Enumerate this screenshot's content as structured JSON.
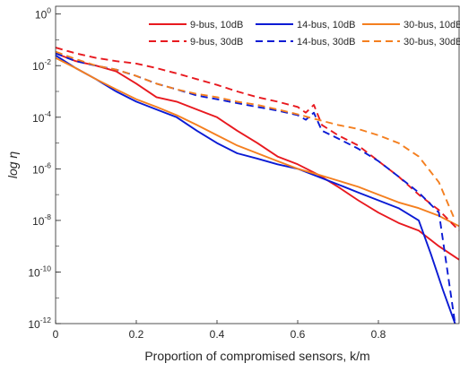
{
  "chart_data": {
    "type": "line",
    "xlabel": "Proportion of compromised sensors, k/m",
    "ylabel": "log η",
    "xlim": [
      0,
      1
    ],
    "ylim": [
      1e-12,
      2
    ],
    "yscale": "log",
    "grid": false,
    "legend_position": "top-right",
    "x_ticks": [
      0,
      0.2,
      0.4,
      0.6,
      0.8
    ],
    "x_tick_labels": [
      "0",
      "0.2",
      "0.4",
      "0.6",
      "0.8"
    ],
    "y_ticks": [
      1e-12,
      1e-10,
      1e-08,
      1e-06,
      0.0001,
      0.01,
      1
    ],
    "y_tick_labels": [
      {
        "base": "10",
        "exp": "-12"
      },
      {
        "base": "10",
        "exp": "-10"
      },
      {
        "base": "10",
        "exp": "-8"
      },
      {
        "base": "10",
        "exp": "-6"
      },
      {
        "base": "10",
        "exp": "-4"
      },
      {
        "base": "10",
        "exp": "-2"
      },
      {
        "base": "10",
        "exp": "0"
      }
    ],
    "series": [
      {
        "name": "9-bus, 10dB",
        "color": "#e8191f",
        "dash": "solid",
        "x": [
          0,
          0.05,
          0.1,
          0.15,
          0.2,
          0.25,
          0.3,
          0.35,
          0.4,
          0.45,
          0.5,
          0.55,
          0.6,
          0.65,
          0.7,
          0.75,
          0.8,
          0.85,
          0.9,
          0.95,
          1.0
        ],
        "y": [
          0.03,
          0.015,
          0.01,
          0.006,
          0.002,
          0.0006,
          0.0004,
          0.0002,
          0.0001,
          3e-05,
          1e-05,
          3e-06,
          1.5e-06,
          6e-07,
          2e-07,
          6e-08,
          2e-08,
          8e-09,
          4e-09,
          1e-09,
          3e-10
        ]
      },
      {
        "name": "14-bus, 10dB",
        "color": "#0b1bd4",
        "dash": "solid",
        "x": [
          0,
          0.05,
          0.1,
          0.15,
          0.2,
          0.25,
          0.3,
          0.35,
          0.4,
          0.45,
          0.5,
          0.55,
          0.6,
          0.65,
          0.7,
          0.75,
          0.8,
          0.85,
          0.9,
          0.93,
          0.96,
          0.99
        ],
        "y": [
          0.025,
          0.008,
          0.003,
          0.001,
          0.0004,
          0.0002,
          0.0001,
          3e-05,
          1e-05,
          4e-06,
          2.5e-06,
          1.5e-06,
          1e-06,
          5e-07,
          2.5e-07,
          1.2e-07,
          6e-08,
          3e-08,
          1e-08,
          5e-10,
          2e-11,
          1e-12
        ]
      },
      {
        "name": "30-bus, 10dB",
        "color": "#f47f1f",
        "dash": "solid",
        "x": [
          0,
          0.05,
          0.1,
          0.15,
          0.2,
          0.25,
          0.3,
          0.35,
          0.4,
          0.45,
          0.5,
          0.55,
          0.6,
          0.65,
          0.7,
          0.75,
          0.8,
          0.85,
          0.9,
          0.95,
          1.0
        ],
        "y": [
          0.02,
          0.008,
          0.003,
          0.0012,
          0.0005,
          0.00025,
          0.00012,
          5e-05,
          2e-05,
          8e-06,
          4e-06,
          2e-06,
          1e-06,
          6e-07,
          3.5e-07,
          2e-07,
          1e-07,
          5e-08,
          3e-08,
          1.5e-08,
          6e-09
        ]
      },
      {
        "name": "9-bus, 30dB",
        "color": "#e8191f",
        "dash": "dashed",
        "x": [
          0,
          0.05,
          0.1,
          0.15,
          0.2,
          0.25,
          0.3,
          0.35,
          0.4,
          0.45,
          0.5,
          0.55,
          0.6,
          0.62,
          0.64,
          0.66,
          0.7,
          0.75,
          0.8,
          0.85,
          0.9,
          0.95,
          1.0
        ],
        "y": [
          0.05,
          0.03,
          0.02,
          0.015,
          0.012,
          0.008,
          0.005,
          0.003,
          0.0018,
          0.001,
          0.0006,
          0.0004,
          0.00025,
          0.00015,
          0.0003,
          5e-05,
          2e-05,
          8e-06,
          2e-06,
          5e-07,
          1e-07,
          2.5e-08,
          4e-09
        ]
      },
      {
        "name": "14-bus, 30dB",
        "color": "#0b1bd4",
        "dash": "dashed",
        "x": [
          0,
          0.05,
          0.1,
          0.15,
          0.2,
          0.25,
          0.3,
          0.35,
          0.4,
          0.45,
          0.5,
          0.55,
          0.6,
          0.62,
          0.64,
          0.66,
          0.7,
          0.75,
          0.8,
          0.85,
          0.9,
          0.95,
          0.99
        ],
        "y": [
          0.03,
          0.015,
          0.01,
          0.007,
          0.004,
          0.002,
          0.0012,
          0.0007,
          0.0005,
          0.00035,
          0.00025,
          0.00018,
          0.00012,
          8e-05,
          0.00015,
          3e-05,
          1.5e-05,
          6e-06,
          2e-06,
          5e-07,
          1.2e-07,
          2e-08,
          1e-12
        ]
      },
      {
        "name": "30-bus, 30dB",
        "color": "#f47f1f",
        "dash": "dashed",
        "x": [
          0,
          0.05,
          0.1,
          0.15,
          0.2,
          0.25,
          0.3,
          0.35,
          0.4,
          0.45,
          0.5,
          0.55,
          0.6,
          0.65,
          0.7,
          0.75,
          0.8,
          0.85,
          0.9,
          0.95,
          0.99
        ],
        "y": [
          0.035,
          0.018,
          0.01,
          0.007,
          0.004,
          0.002,
          0.0012,
          0.0008,
          0.0006,
          0.0004,
          0.0003,
          0.0002,
          0.00013,
          8e-05,
          5e-05,
          3.5e-05,
          2e-05,
          1e-05,
          3e-06,
          3e-07,
          1e-08
        ]
      }
    ]
  }
}
